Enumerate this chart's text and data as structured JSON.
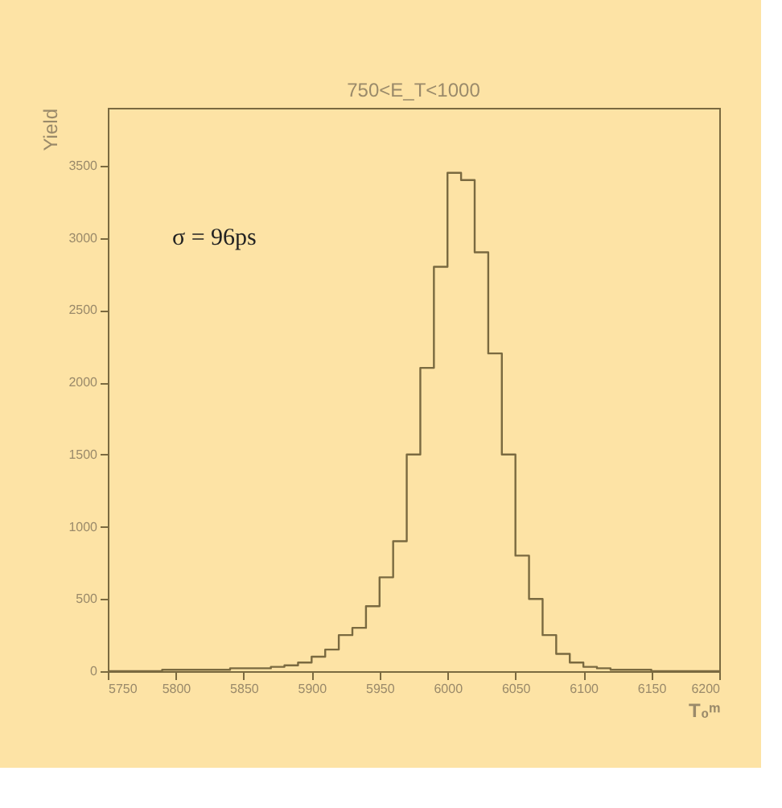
{
  "chart_data": {
    "type": "histogram",
    "title": "750<E_T<1000",
    "xlabel": "T₀ᵐ",
    "ylabel": "Yield",
    "bins": [
      5750,
      5760,
      5770,
      5780,
      5790,
      5800,
      5810,
      5820,
      5830,
      5840,
      5850,
      5860,
      5870,
      5880,
      5890,
      5900,
      5910,
      5920,
      5930,
      5940,
      5950,
      5960,
      5970,
      5980,
      5990,
      6000,
      6010,
      6020,
      6030,
      6040,
      6050,
      6060,
      6070,
      6080,
      6090,
      6100,
      6110,
      6120,
      6130,
      6140,
      6150,
      6160,
      6170,
      6180,
      6190,
      6200
    ],
    "values": [
      0,
      0,
      0,
      0,
      10,
      10,
      10,
      10,
      10,
      20,
      20,
      20,
      30,
      40,
      60,
      100,
      150,
      250,
      300,
      450,
      650,
      900,
      1500,
      2100,
      2800,
      3450,
      3400,
      2900,
      2200,
      1500,
      800,
      500,
      250,
      120,
      60,
      30,
      20,
      10,
      10,
      10,
      0,
      0,
      0,
      0,
      0
    ],
    "color": "#7a6a40",
    "xlim": [
      5750,
      6200
    ],
    "xticks": [
      5750,
      5800,
      5850,
      5900,
      5950,
      6000,
      6050,
      6100,
      6150,
      6200
    ],
    "ylim": [
      0,
      3900
    ],
    "yticks": [
      0,
      500,
      1000,
      1500,
      2000,
      2500,
      3000,
      3500
    ],
    "grid": false,
    "annotations": [
      "σ = 96ps"
    ]
  }
}
